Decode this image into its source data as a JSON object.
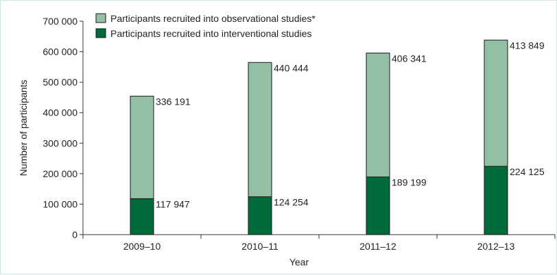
{
  "chart_data": {
    "type": "bar",
    "stacked": true,
    "categories": [
      "2009–10",
      "2010–11",
      "2011–12",
      "2012–13"
    ],
    "series": [
      {
        "name": "Participants recruited into interventional studies",
        "color": "#006b3a",
        "values": [
          117947,
          124254,
          189199,
          224125
        ],
        "labels": [
          "117 947",
          "124 254",
          "189 199",
          "224 125"
        ]
      },
      {
        "name": "Participants recruited into observational studies*",
        "color": "#93bfa5",
        "values": [
          336191,
          440444,
          406341,
          413849
        ],
        "labels": [
          "336 191",
          "440 444",
          "406 341",
          "413 849"
        ]
      }
    ],
    "xlabel": "Year",
    "ylabel": "Number of participants",
    "ylim": [
      0,
      700000
    ],
    "yticks": [
      0,
      100000,
      200000,
      300000,
      400000,
      500000,
      600000,
      700000
    ],
    "ytick_labels": [
      "0",
      "100 000",
      "200 000",
      "300 000",
      "400 000",
      "500 000",
      "600 000",
      "700 000"
    ],
    "grid": false,
    "legend_position": "top-left"
  }
}
